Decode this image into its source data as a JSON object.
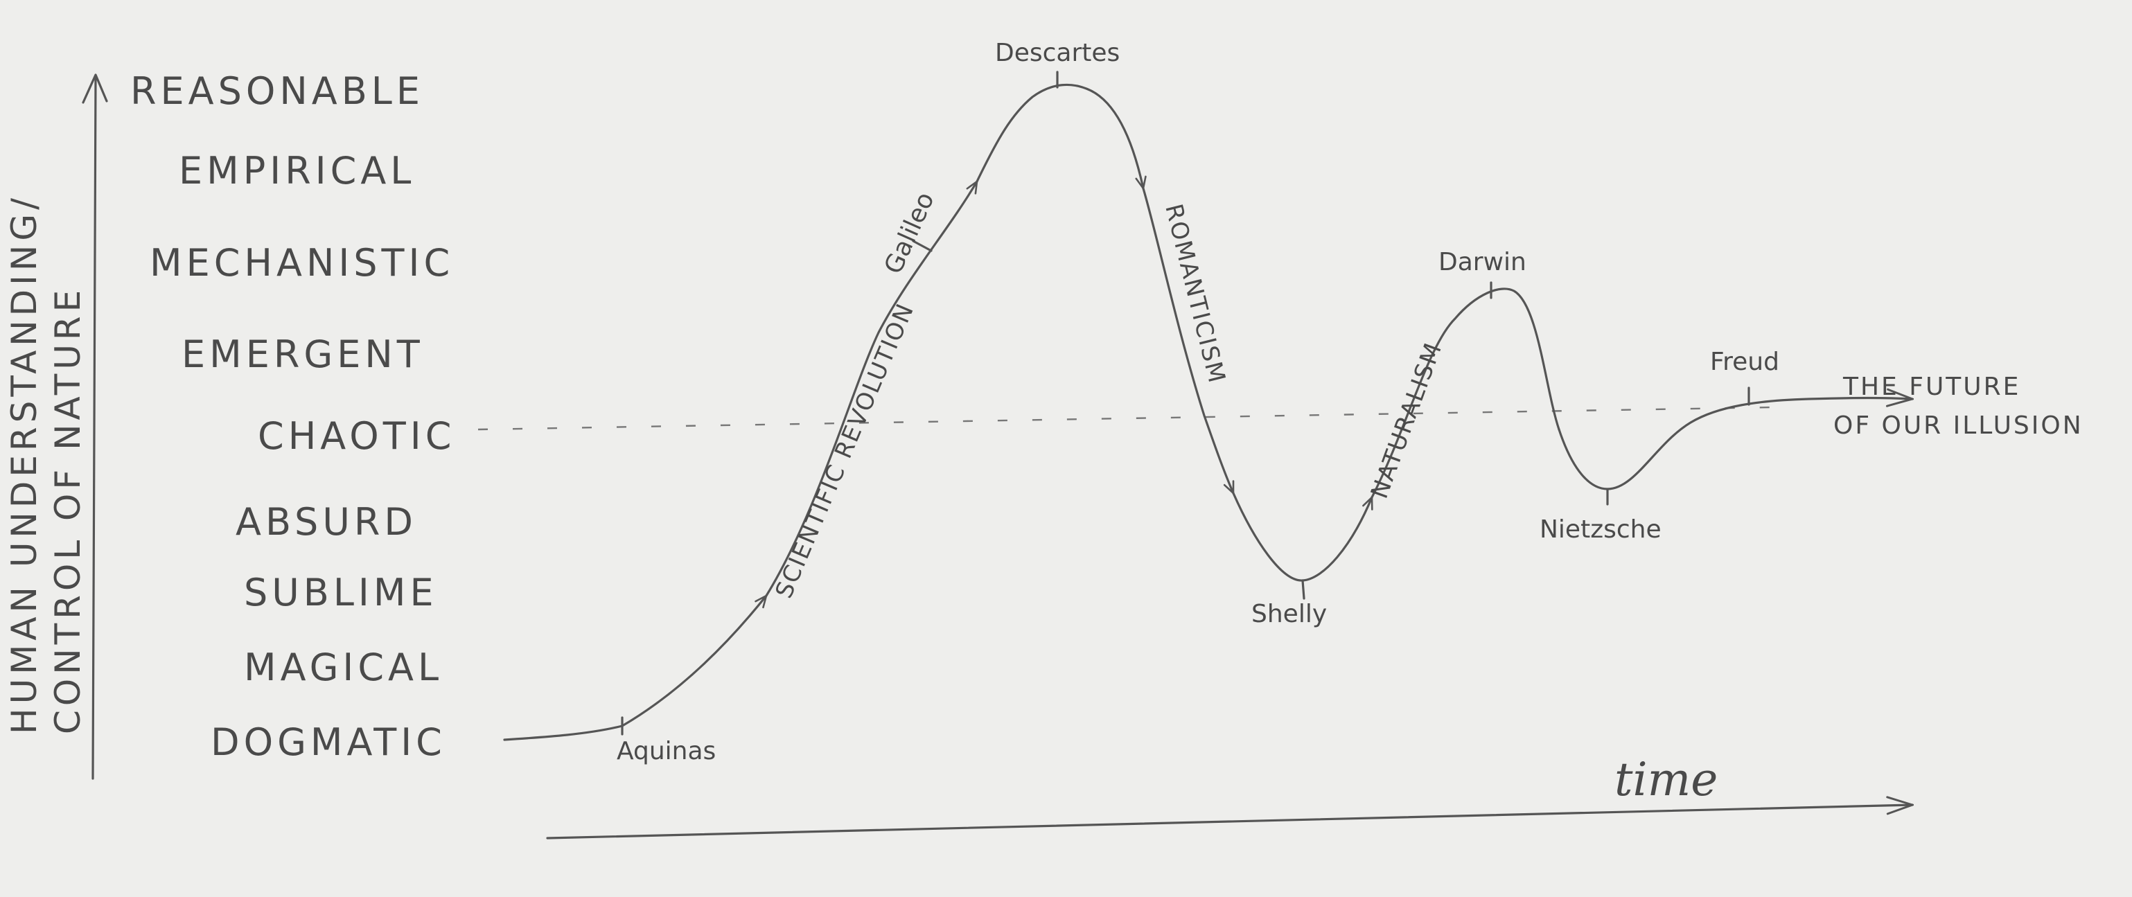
{
  "y_axis": {
    "title_line1": "HUMAN UNDERSTANDING/",
    "title_line2": "CONTROL OF NATURE"
  },
  "x_axis": {
    "label": "time"
  },
  "levels": [
    "REASONABLE",
    "EMPIRICAL",
    "MECHANISTIC",
    "EMERGENT",
    "CHAOTIC",
    "ABSURD",
    "SUBLIME",
    "MAGICAL",
    "DOGMATIC"
  ],
  "thinkers": {
    "aquinas": "Aquinas",
    "galileo": "Galileo",
    "descartes": "Descartes",
    "shelly": "Shelly",
    "darwin": "Darwin",
    "nietzsche": "Nietzsche",
    "freud": "Freud"
  },
  "eras": {
    "scientific_revolution": "SCIENTIFIC REVOLUTION",
    "romanticism": "ROMANTICISM",
    "naturalism": "NATURALISM"
  },
  "future": {
    "line1": "THE FUTURE",
    "line2": "OF OUR ILLUSION"
  }
}
